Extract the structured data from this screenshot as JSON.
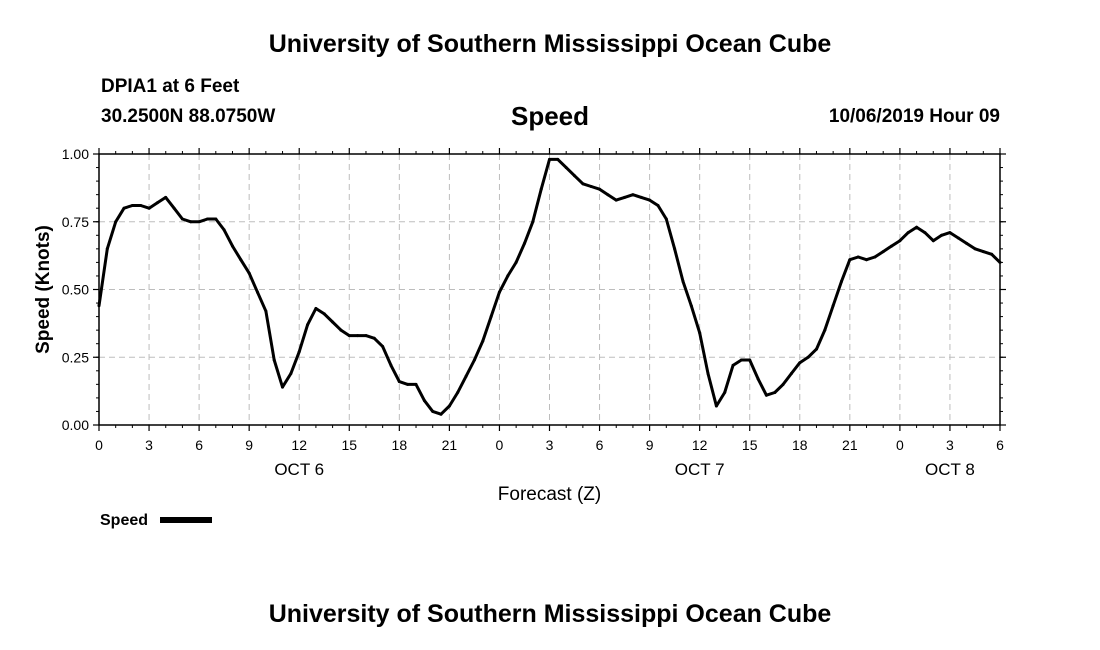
{
  "header": {
    "title": "University of Southern Mississippi Ocean Cube",
    "station": "DPIA1 at 6 Feet",
    "coords": "30.2500N 88.0750W",
    "variable": "Speed",
    "datetime": "10/06/2019 Hour 09"
  },
  "footer": {
    "title": "University of Southern Mississippi Ocean Cube"
  },
  "chart_data": {
    "type": "line",
    "title": "Speed",
    "xlabel": "Forecast (Z)",
    "ylabel": "Speed (Knots)",
    "ylim": [
      0,
      1
    ],
    "xlim": [
      0,
      54
    ],
    "y_ticks": [
      "0.00",
      "0.25",
      "0.50",
      "0.75",
      "1.00"
    ],
    "x_ticks": [
      {
        "h": 0,
        "label": "0"
      },
      {
        "h": 3,
        "label": "3"
      },
      {
        "h": 6,
        "label": "6"
      },
      {
        "h": 9,
        "label": "9"
      },
      {
        "h": 12,
        "label": "12"
      },
      {
        "h": 15,
        "label": "15"
      },
      {
        "h": 18,
        "label": "18"
      },
      {
        "h": 21,
        "label": "21"
      },
      {
        "h": 24,
        "label": "0"
      },
      {
        "h": 27,
        "label": "3"
      },
      {
        "h": 30,
        "label": "6"
      },
      {
        "h": 33,
        "label": "9"
      },
      {
        "h": 36,
        "label": "12"
      },
      {
        "h": 39,
        "label": "15"
      },
      {
        "h": 42,
        "label": "18"
      },
      {
        "h": 45,
        "label": "21"
      },
      {
        "h": 48,
        "label": "0"
      },
      {
        "h": 51,
        "label": "3"
      },
      {
        "h": 54,
        "label": "6"
      }
    ],
    "day_labels": [
      {
        "h": 12,
        "label": "OCT 6"
      },
      {
        "h": 36,
        "label": "OCT 7"
      },
      {
        "h": 51,
        "label": "OCT 8"
      }
    ],
    "grid": true,
    "legend": "bottom-left",
    "series": [
      {
        "name": "Speed",
        "x": [
          0,
          0.5,
          1,
          1.5,
          2,
          2.5,
          3,
          3.5,
          4,
          4.5,
          5,
          5.5,
          6,
          6.5,
          7,
          7.5,
          8,
          8.5,
          9,
          9.5,
          10,
          10.5,
          11,
          11.5,
          12,
          12.5,
          13,
          13.5,
          14,
          14.5,
          15,
          15.5,
          16,
          16.5,
          17,
          17.5,
          18,
          18.5,
          19,
          19.5,
          20,
          20.5,
          21,
          21.5,
          22,
          22.5,
          23,
          23.5,
          24,
          24.5,
          25,
          25.5,
          26,
          26.5,
          27,
          27.5,
          28,
          28.5,
          29,
          29.5,
          30,
          30.5,
          31,
          31.5,
          32,
          32.5,
          33,
          33.5,
          34,
          34.5,
          35,
          35.5,
          36,
          36.5,
          37,
          37.5,
          38,
          38.5,
          39,
          39.5,
          40,
          40.5,
          41,
          41.5,
          42,
          42.5,
          43,
          43.5,
          44,
          44.5,
          45,
          45.5,
          46,
          46.5,
          47,
          47.5,
          48,
          48.5,
          49,
          49.5,
          50,
          50.5,
          51,
          51.5,
          52,
          52.5,
          53,
          53.5,
          54
        ],
        "values": [
          0.44,
          0.65,
          0.75,
          0.8,
          0.81,
          0.81,
          0.8,
          0.82,
          0.84,
          0.8,
          0.76,
          0.75,
          0.75,
          0.76,
          0.76,
          0.72,
          0.66,
          0.61,
          0.56,
          0.49,
          0.42,
          0.24,
          0.14,
          0.19,
          0.27,
          0.37,
          0.43,
          0.41,
          0.38,
          0.35,
          0.33,
          0.33,
          0.33,
          0.32,
          0.29,
          0.22,
          0.16,
          0.15,
          0.15,
          0.09,
          0.05,
          0.04,
          0.07,
          0.12,
          0.18,
          0.24,
          0.31,
          0.4,
          0.49,
          0.55,
          0.6,
          0.67,
          0.75,
          0.87,
          0.98,
          0.98,
          0.95,
          0.92,
          0.89,
          0.88,
          0.87,
          0.85,
          0.83,
          0.84,
          0.85,
          0.84,
          0.83,
          0.81,
          0.76,
          0.65,
          0.53,
          0.44,
          0.34,
          0.19,
          0.07,
          0.12,
          0.22,
          0.24,
          0.24,
          0.17,
          0.11,
          0.12,
          0.15,
          0.19,
          0.23,
          0.25,
          0.28,
          0.35,
          0.44,
          0.53,
          0.61,
          0.62,
          0.61,
          0.62,
          0.64,
          0.66,
          0.68,
          0.71,
          0.73,
          0.71,
          0.68,
          0.7,
          0.71,
          0.69,
          0.67,
          0.65,
          0.64,
          0.63,
          0.6
        ]
      }
    ],
    "colors": {
      "line": "#000000",
      "grid": "#bdbdbd"
    }
  }
}
